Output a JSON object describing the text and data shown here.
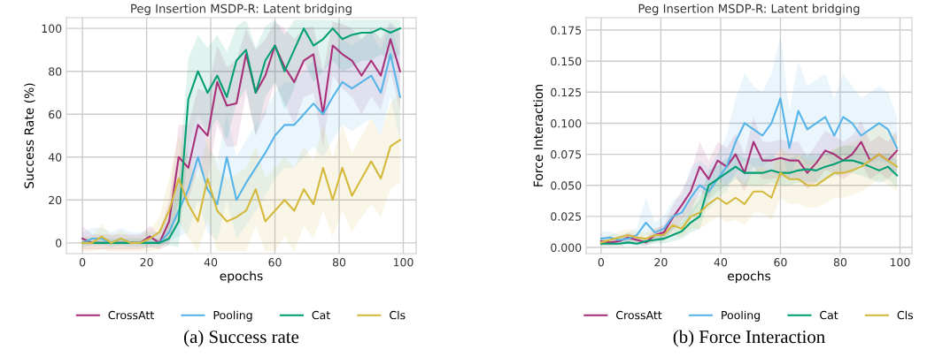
{
  "chart_data": [
    {
      "type": "line",
      "title": "Peg Insertion MSDP-R: Latent bridging",
      "xlabel": "epochs",
      "ylabel": "Success Rate (%)",
      "x": [
        0,
        3,
        6,
        9,
        12,
        15,
        18,
        21,
        24,
        27,
        30,
        33,
        36,
        39,
        42,
        45,
        48,
        51,
        54,
        57,
        60,
        63,
        66,
        69,
        72,
        75,
        78,
        81,
        84,
        87,
        90,
        93,
        96,
        99
      ],
      "xlim": [
        -5,
        104
      ],
      "xticks": [
        0,
        20,
        40,
        60,
        80,
        100
      ],
      "ylim": [
        -5,
        105
      ],
      "yticks": [
        0,
        20,
        40,
        60,
        80,
        100
      ],
      "grid": true,
      "legend": "bottom",
      "annotations": [
        "(a) Success rate"
      ],
      "series": [
        {
          "name": "CrossAtt",
          "color": "#a8307a",
          "values": [
            2,
            0,
            0,
            0,
            0,
            0,
            0,
            3,
            0,
            10,
            40,
            35,
            55,
            50,
            75,
            64,
            65,
            88,
            70,
            78,
            92,
            82,
            75,
            85,
            88,
            60,
            92,
            88,
            85,
            78,
            85,
            78,
            95,
            80
          ],
          "lower": [
            -3,
            -3,
            -3,
            -3,
            -3,
            -3,
            -3,
            -2,
            -3,
            -1,
            20,
            20,
            35,
            30,
            55,
            45,
            45,
            70,
            50,
            60,
            75,
            65,
            55,
            68,
            70,
            45,
            78,
            72,
            68,
            60,
            68,
            62,
            80,
            62
          ],
          "upper": [
            8,
            4,
            4,
            4,
            4,
            4,
            4,
            8,
            4,
            20,
            55,
            55,
            72,
            70,
            92,
            82,
            85,
            100,
            90,
            95,
            103,
            100,
            95,
            100,
            101,
            80,
            103,
            102,
            100,
            95,
            100,
            95,
            103,
            98
          ]
        },
        {
          "name": "Pooling",
          "color": "#56b4e9",
          "values": [
            0,
            2,
            2,
            0,
            2,
            0,
            0,
            0,
            0,
            5,
            15,
            25,
            40,
            25,
            18,
            40,
            20,
            28,
            35,
            42,
            50,
            55,
            55,
            60,
            65,
            60,
            68,
            75,
            72,
            75,
            78,
            70,
            88,
            68
          ],
          "lower": [
            -2,
            -1,
            -1,
            -2,
            -1,
            -2,
            -2,
            -2,
            -2,
            1,
            3,
            5,
            20,
            5,
            1,
            20,
            2,
            8,
            15,
            22,
            30,
            35,
            35,
            40,
            45,
            40,
            48,
            55,
            52,
            55,
            58,
            50,
            68,
            48
          ],
          "upper": [
            5,
            7,
            7,
            5,
            7,
            5,
            5,
            5,
            5,
            12,
            30,
            45,
            60,
            45,
            38,
            60,
            40,
            48,
            55,
            62,
            70,
            75,
            75,
            80,
            85,
            80,
            88,
            95,
            92,
            95,
            98,
            90,
            102,
            88
          ]
        },
        {
          "name": "Cat",
          "color": "#009e73",
          "values": [
            0,
            0,
            0,
            0,
            0,
            0,
            0,
            0,
            0,
            2,
            10,
            67,
            80,
            70,
            78,
            68,
            85,
            90,
            70,
            85,
            92,
            80,
            90,
            100,
            92,
            95,
            100,
            95,
            97,
            98,
            98,
            100,
            98,
            100
          ],
          "lower": [
            -1,
            -1,
            -1,
            -1,
            -1,
            -1,
            -1,
            -1,
            -1,
            -1,
            -2,
            45,
            60,
            50,
            58,
            48,
            65,
            72,
            50,
            68,
            75,
            62,
            72,
            85,
            75,
            80,
            85,
            80,
            82,
            85,
            85,
            88,
            85,
            88
          ],
          "upper": [
            2,
            2,
            2,
            2,
            2,
            2,
            2,
            2,
            2,
            9,
            31,
            86,
            97,
            91,
            97,
            89,
            101,
            104,
            91,
            101,
            104,
            97,
            104,
            104,
            104,
            104,
            104,
            104,
            104,
            104,
            104,
            104,
            104,
            104
          ]
        },
        {
          "name": "Cls",
          "color": "#d4b93c",
          "values": [
            0,
            0,
            3,
            0,
            2,
            0,
            0,
            2,
            5,
            15,
            30,
            18,
            10,
            30,
            15,
            10,
            12,
            15,
            25,
            10,
            15,
            20,
            15,
            25,
            18,
            35,
            20,
            35,
            22,
            30,
            38,
            30,
            45,
            48
          ],
          "lower": [
            -4,
            -4,
            -3,
            -4,
            -4,
            -4,
            -4,
            -4,
            -3,
            2,
            10,
            2,
            -4,
            10,
            -4,
            -4,
            -4,
            -4,
            8,
            -4,
            -4,
            3,
            -4,
            8,
            2,
            15,
            3,
            15,
            5,
            12,
            18,
            12,
            25,
            28
          ],
          "upper": [
            3,
            3,
            9,
            3,
            6,
            3,
            3,
            6,
            12,
            30,
            50,
            38,
            30,
            50,
            35,
            30,
            32,
            35,
            45,
            30,
            35,
            40,
            35,
            45,
            38,
            55,
            40,
            55,
            42,
            50,
            58,
            50,
            65,
            70
          ]
        }
      ]
    },
    {
      "type": "line",
      "title": "Peg Insertion MSDP-R: Latent bridging",
      "xlabel": "epochs",
      "ylabel": "Force Interaction",
      "x": [
        0,
        3,
        6,
        9,
        12,
        15,
        18,
        21,
        24,
        27,
        30,
        33,
        36,
        39,
        42,
        45,
        48,
        51,
        54,
        57,
        60,
        63,
        66,
        69,
        72,
        75,
        78,
        81,
        84,
        87,
        90,
        93,
        96,
        99
      ],
      "xlim": [
        -5,
        104
      ],
      "xticks": [
        0,
        20,
        40,
        60,
        80,
        100
      ],
      "ylim": [
        -0.005,
        0.185
      ],
      "yticks": [
        {
          "value": 0,
          "label": "0.000"
        },
        {
          "value": 0.025,
          "label": "0.025"
        },
        {
          "value": 0.05,
          "label": "0.050"
        },
        {
          "value": 0.075,
          "label": "0.075"
        },
        {
          "value": 0.1,
          "label": "0.100"
        },
        {
          "value": 0.125,
          "label": "0.125"
        },
        {
          "value": 0.15,
          "label": "0.150"
        },
        {
          "value": 0.175,
          "label": "0.175"
        }
      ],
      "grid": true,
      "legend": "bottom",
      "annotations": [
        "(b) Force Interaction"
      ],
      "series": [
        {
          "name": "CrossAtt",
          "color": "#a8307a",
          "values": [
            0.005,
            0.004,
            0.005,
            0.008,
            0.006,
            0.004,
            0.01,
            0.012,
            0.024,
            0.034,
            0.045,
            0.065,
            0.055,
            0.07,
            0.065,
            0.075,
            0.06,
            0.085,
            0.07,
            0.07,
            0.072,
            0.07,
            0.07,
            0.06,
            0.068,
            0.078,
            0.075,
            0.07,
            0.075,
            0.085,
            0.07,
            0.075,
            0.07,
            0.078
          ],
          "lower": [
            0.002,
            0.001,
            0.002,
            0.004,
            0.003,
            0.001,
            0.005,
            0.006,
            0.014,
            0.022,
            0.03,
            0.045,
            0.04,
            0.055,
            0.05,
            0.058,
            0.045,
            0.065,
            0.055,
            0.055,
            0.057,
            0.055,
            0.055,
            0.047,
            0.053,
            0.062,
            0.06,
            0.055,
            0.06,
            0.068,
            0.055,
            0.06,
            0.055,
            0.062
          ],
          "upper": [
            0.008,
            0.007,
            0.008,
            0.012,
            0.009,
            0.007,
            0.015,
            0.018,
            0.034,
            0.046,
            0.06,
            0.085,
            0.07,
            0.085,
            0.08,
            0.092,
            0.075,
            0.105,
            0.085,
            0.085,
            0.087,
            0.085,
            0.085,
            0.073,
            0.083,
            0.094,
            0.09,
            0.085,
            0.09,
            0.102,
            0.085,
            0.09,
            0.085,
            0.094
          ]
        },
        {
          "name": "Pooling",
          "color": "#56b4e9",
          "values": [
            0.007,
            0.008,
            0.006,
            0.007,
            0.01,
            0.02,
            0.012,
            0.015,
            0.025,
            0.028,
            0.04,
            0.05,
            0.045,
            0.055,
            0.065,
            0.085,
            0.1,
            0.095,
            0.09,
            0.1,
            0.12,
            0.08,
            0.11,
            0.095,
            0.1,
            0.105,
            0.09,
            0.105,
            0.1,
            0.09,
            0.095,
            0.1,
            0.095,
            0.08
          ],
          "lower": [
            0.003,
            0.004,
            0.002,
            0.003,
            0.005,
            0.01,
            0.006,
            0.008,
            0.015,
            0.018,
            0.025,
            0.035,
            0.03,
            0.04,
            0.045,
            0.06,
            0.07,
            0.065,
            0.065,
            0.07,
            0.08,
            0.055,
            0.075,
            0.065,
            0.07,
            0.075,
            0.065,
            0.075,
            0.07,
            0.065,
            0.068,
            0.07,
            0.068,
            0.058
          ],
          "upper": [
            0.012,
            0.013,
            0.01,
            0.012,
            0.016,
            0.04,
            0.02,
            0.025,
            0.038,
            0.042,
            0.065,
            0.07,
            0.065,
            0.075,
            0.09,
            0.12,
            0.14,
            0.13,
            0.125,
            0.14,
            0.17,
            0.11,
            0.15,
            0.13,
            0.135,
            0.14,
            0.12,
            0.14,
            0.13,
            0.12,
            0.125,
            0.13,
            0.125,
            0.105
          ]
        },
        {
          "name": "Cat",
          "color": "#009e73",
          "values": [
            0.003,
            0.003,
            0.003,
            0.004,
            0.003,
            0.005,
            0.006,
            0.007,
            0.01,
            0.013,
            0.02,
            0.025,
            0.05,
            0.055,
            0.06,
            0.065,
            0.06,
            0.06,
            0.06,
            0.062,
            0.06,
            0.06,
            0.062,
            0.063,
            0.062,
            0.065,
            0.067,
            0.07,
            0.07,
            0.068,
            0.065,
            0.062,
            0.065,
            0.058
          ],
          "lower": [
            0.001,
            0.001,
            0.001,
            0.002,
            0.001,
            0.002,
            0.003,
            0.003,
            0.005,
            0.007,
            0.012,
            0.015,
            0.038,
            0.045,
            0.05,
            0.055,
            0.05,
            0.05,
            0.05,
            0.052,
            0.05,
            0.05,
            0.052,
            0.053,
            0.052,
            0.055,
            0.057,
            0.06,
            0.06,
            0.058,
            0.055,
            0.052,
            0.055,
            0.048
          ],
          "upper": [
            0.006,
            0.006,
            0.006,
            0.007,
            0.006,
            0.008,
            0.01,
            0.012,
            0.016,
            0.02,
            0.03,
            0.038,
            0.062,
            0.066,
            0.072,
            0.076,
            0.072,
            0.072,
            0.072,
            0.074,
            0.072,
            0.072,
            0.074,
            0.075,
            0.074,
            0.076,
            0.078,
            0.082,
            0.082,
            0.08,
            0.076,
            0.073,
            0.076,
            0.07
          ]
        },
        {
          "name": "Cls",
          "color": "#d4b93c",
          "values": [
            0.004,
            0.006,
            0.008,
            0.01,
            0.008,
            0.007,
            0.01,
            0.01,
            0.018,
            0.015,
            0.025,
            0.028,
            0.035,
            0.04,
            0.035,
            0.04,
            0.035,
            0.045,
            0.045,
            0.04,
            0.06,
            0.055,
            0.055,
            0.05,
            0.05,
            0.055,
            0.06,
            0.06,
            0.062,
            0.065,
            0.07,
            0.075,
            0.07,
            0.065
          ],
          "lower": [
            0.001,
            0.002,
            0.004,
            0.005,
            0.004,
            0.003,
            0.005,
            0.005,
            0.01,
            0.008,
            0.015,
            0.015,
            0.02,
            0.025,
            0.02,
            0.022,
            0.018,
            0.028,
            0.028,
            0.022,
            0.04,
            0.035,
            0.035,
            0.032,
            0.032,
            0.035,
            0.04,
            0.04,
            0.042,
            0.045,
            0.05,
            0.055,
            0.05,
            0.045
          ],
          "upper": [
            0.008,
            0.01,
            0.013,
            0.015,
            0.013,
            0.012,
            0.016,
            0.016,
            0.028,
            0.025,
            0.038,
            0.042,
            0.05,
            0.056,
            0.05,
            0.058,
            0.052,
            0.062,
            0.065,
            0.06,
            0.08,
            0.075,
            0.075,
            0.07,
            0.07,
            0.075,
            0.08,
            0.082,
            0.085,
            0.088,
            0.095,
            0.1,
            0.095,
            0.09
          ]
        }
      ]
    }
  ]
}
